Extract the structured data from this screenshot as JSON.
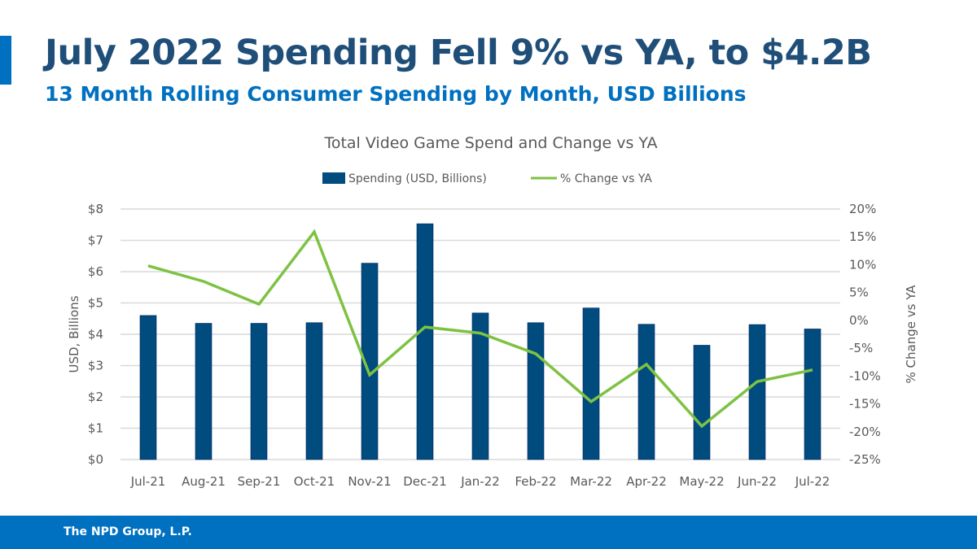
{
  "header": {
    "title": "July 2022 Spending Fell 9% vs YA, to $4.2B",
    "subtitle": "13 Month Rolling Consumer Spending by Month, USD Billions"
  },
  "footer": {
    "text": "The NPD Group, L.P."
  },
  "colors": {
    "bar": "#004c7f",
    "line": "#7dc242",
    "accent": "#0070c0",
    "title": "#1f4e79"
  },
  "chart_data": {
    "type": "bar+line",
    "title": "Total Video Game Spend and Change vs YA",
    "categories": [
      "Jul-21",
      "Aug-21",
      "Sep-21",
      "Oct-21",
      "Nov-21",
      "Dec-21",
      "Jan-22",
      "Feb-22",
      "Mar-22",
      "Apr-22",
      "May-22",
      "Jun-22",
      "Jul-22"
    ],
    "series": [
      {
        "name": "Spending (USD, Billions)",
        "type": "bar",
        "axis": "left",
        "values": [
          4.6,
          4.35,
          4.35,
          4.37,
          6.27,
          7.53,
          4.68,
          4.37,
          4.84,
          4.32,
          3.65,
          4.31,
          4.17
        ]
      },
      {
        "name": "% Change vs YA",
        "type": "line",
        "axis": "right",
        "values": [
          9.8,
          7.0,
          2.9,
          15.9,
          -9.8,
          -1.2,
          -2.3,
          -6.0,
          -14.6,
          -7.9,
          -19.0,
          -11.0,
          -8.9
        ]
      }
    ],
    "ylabel": "USD, Billions",
    "y2label": "% Change vs YA",
    "ylim": [
      0,
      8
    ],
    "y2lim": [
      -25,
      20
    ],
    "yticks": [
      "$0",
      "$1",
      "$2",
      "$3",
      "$4",
      "$5",
      "$6",
      "$7",
      "$8"
    ],
    "y2ticks": [
      "-25%",
      "-20%",
      "-15%",
      "-10%",
      "-5%",
      "0%",
      "5%",
      "10%",
      "15%",
      "20%"
    ],
    "legend": "top",
    "grid": true
  }
}
